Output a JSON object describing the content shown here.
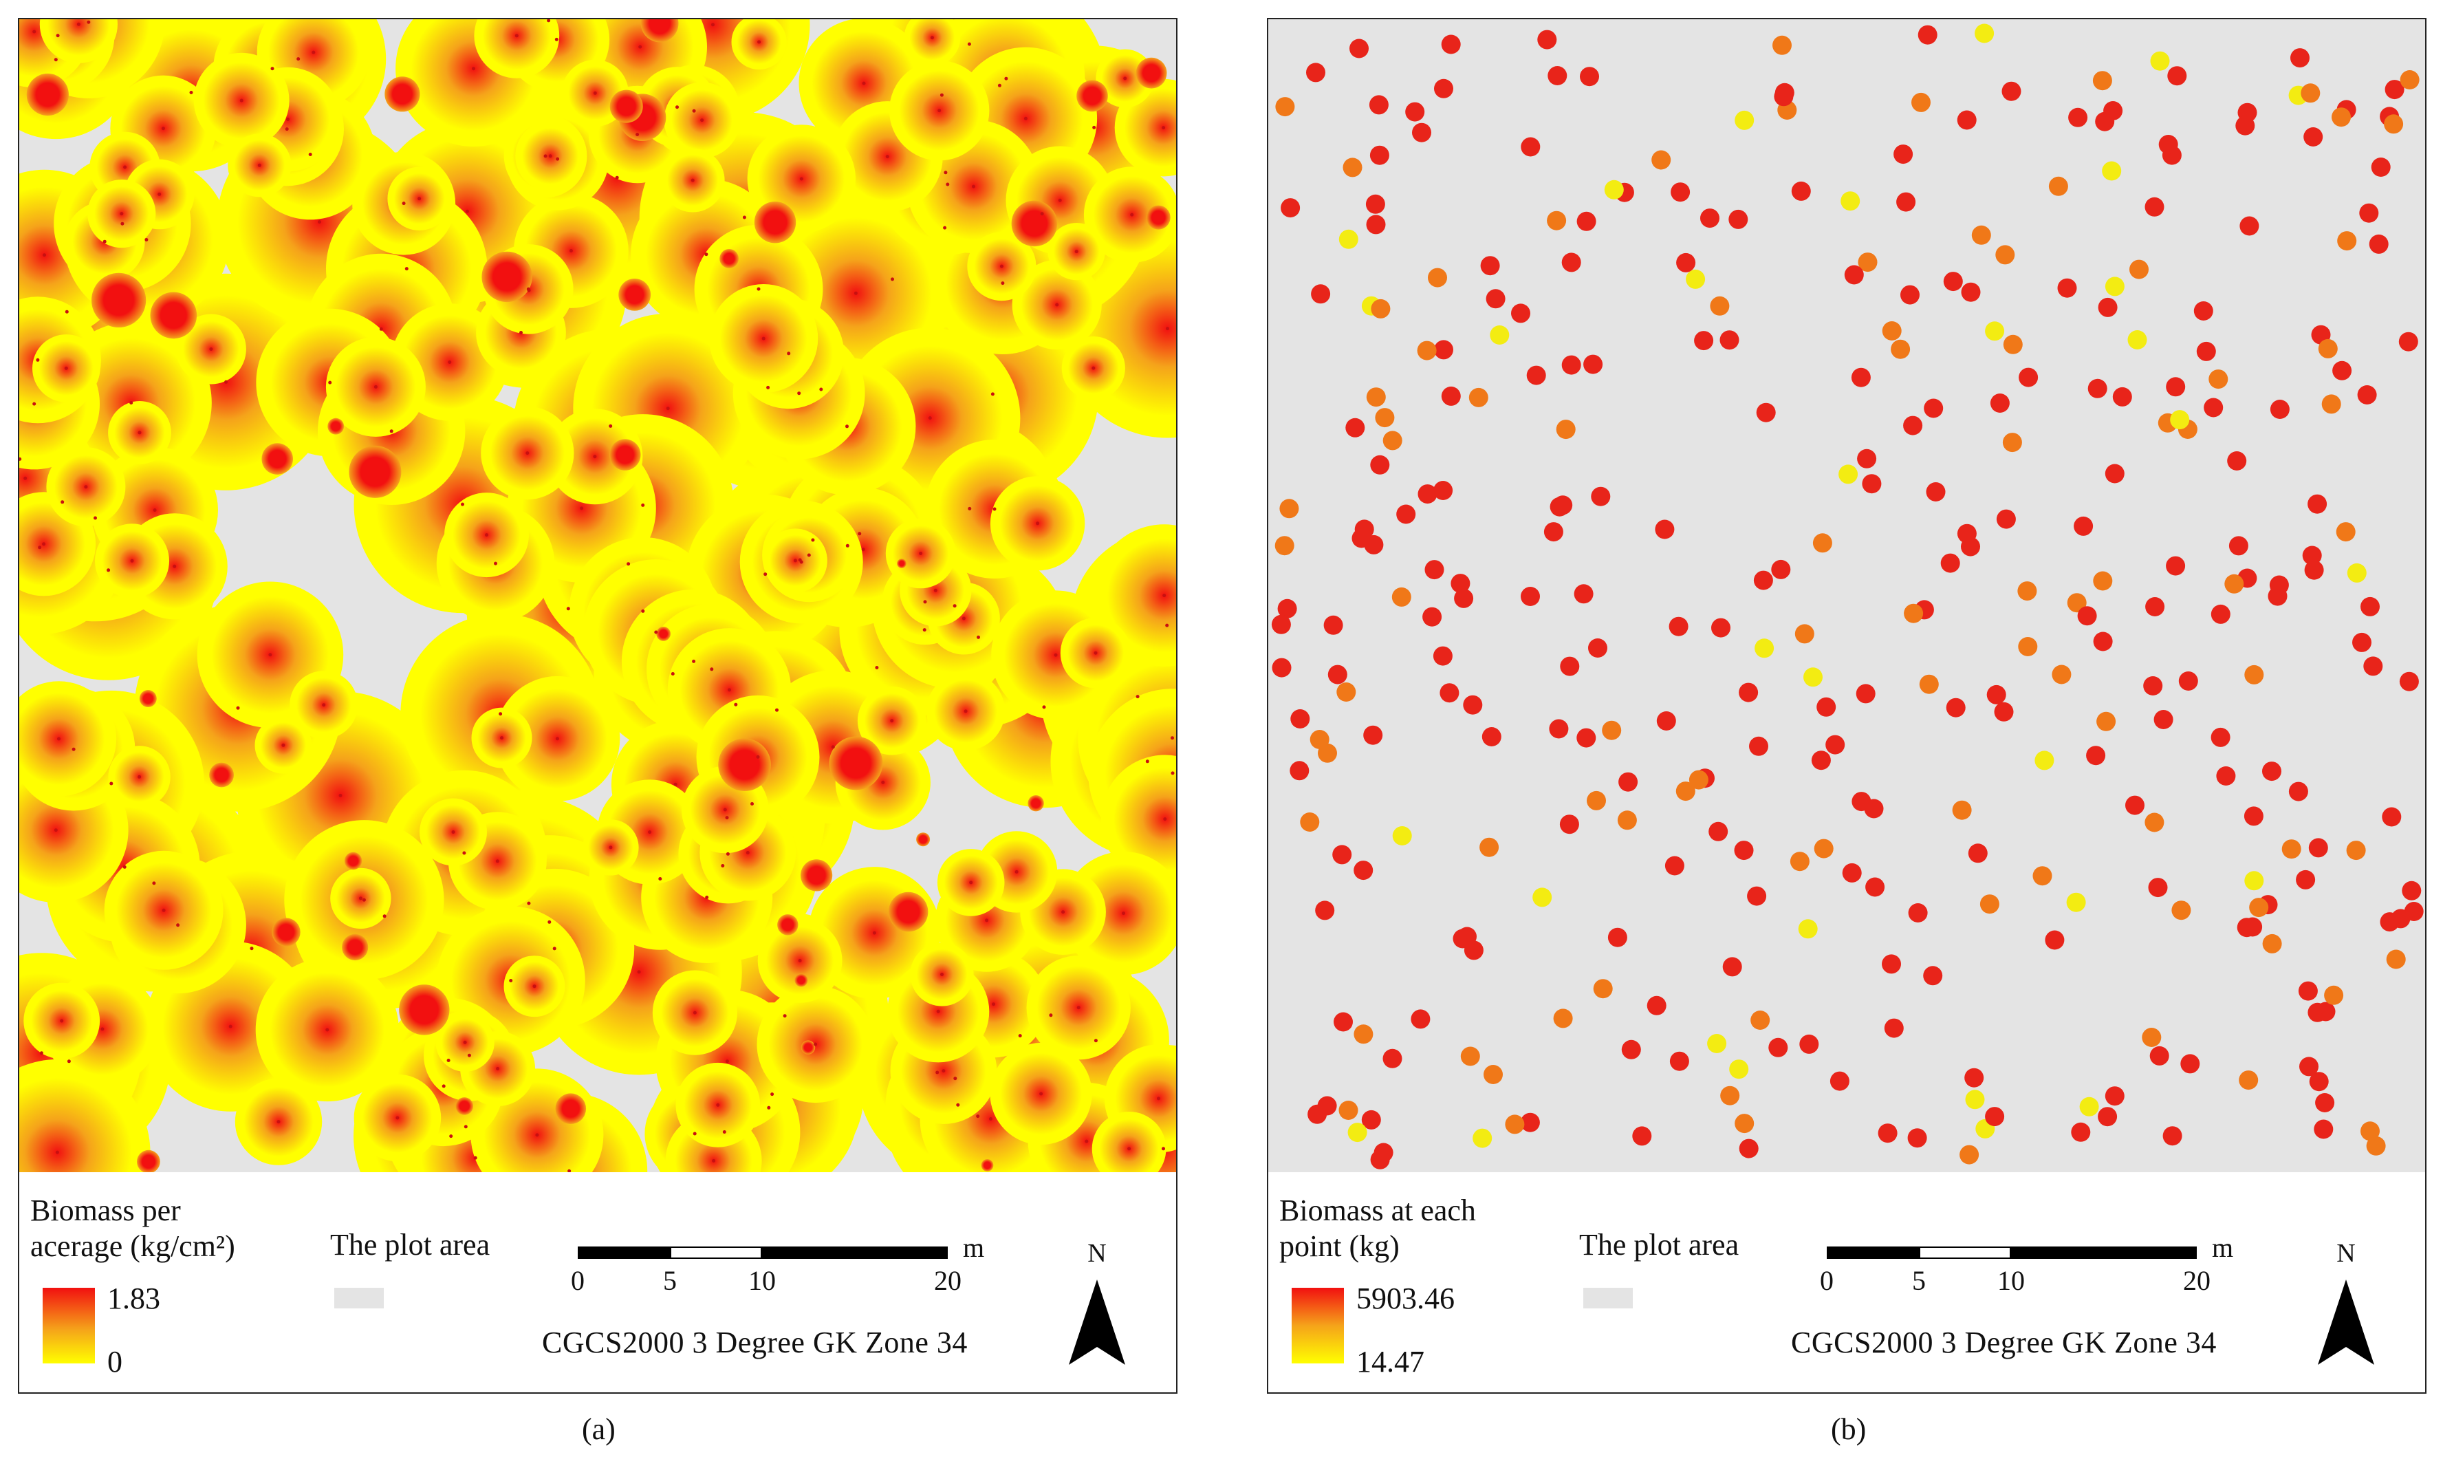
{
  "panels": [
    {
      "id": "a",
      "caption": "(a)",
      "legend": {
        "title": "Biomass per\nacerage (kg/cm²)",
        "max_label": "1.83",
        "min_label": "0",
        "plot_area_label": "The plot area",
        "scale_ticks": [
          "0",
          "5",
          "10",
          "20"
        ],
        "scale_unit": "m",
        "crs": "CGCS2000 3 Degree GK Zone 34",
        "north_label": "N"
      },
      "colors": {
        "high": "#f21010",
        "mid": "#f5a31a",
        "low": "#ffff00",
        "background": "#e4e4e4"
      }
    },
    {
      "id": "b",
      "caption": "(b)",
      "legend": {
        "title": "Biomass at each\npoint (kg)",
        "max_label": "5903.46",
        "min_label": "14.47",
        "plot_area_label": "The plot area",
        "scale_ticks": [
          "0",
          "5",
          "10",
          "20"
        ],
        "scale_unit": "m",
        "crs": "CGCS2000 3 Degree GK Zone 34",
        "north_label": "N"
      },
      "colors": {
        "high": "#e8241a",
        "mid": "#f07818",
        "low": "#f3ec12",
        "background": "#e4e4e4"
      }
    }
  ]
}
